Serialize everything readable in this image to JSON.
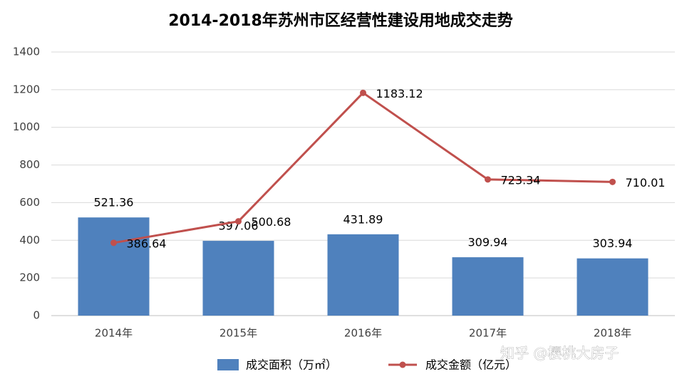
{
  "chart_data": {
    "type": "combo",
    "title": "2014-2018年苏州市区经营性建设用地成交走势",
    "categories": [
      "2014年",
      "2015年",
      "2016年",
      "2017年",
      "2018年"
    ],
    "series": [
      {
        "name": "成交面积（万㎡）",
        "type": "bar",
        "color": "#4f81bd",
        "values": [
          521.36,
          397.06,
          431.89,
          309.94,
          303.94
        ]
      },
      {
        "name": "成交金额（亿元）",
        "type": "line",
        "color": "#c0504d",
        "values": [
          386.64,
          500.68,
          1183.12,
          723.34,
          710.01
        ]
      }
    ],
    "ylim": [
      0,
      1400
    ],
    "yticks": [
      0,
      200,
      400,
      600,
      800,
      1000,
      1200,
      1400
    ],
    "grid": true,
    "legend": "bottom"
  },
  "watermark": "知乎 @樱桃大房子"
}
